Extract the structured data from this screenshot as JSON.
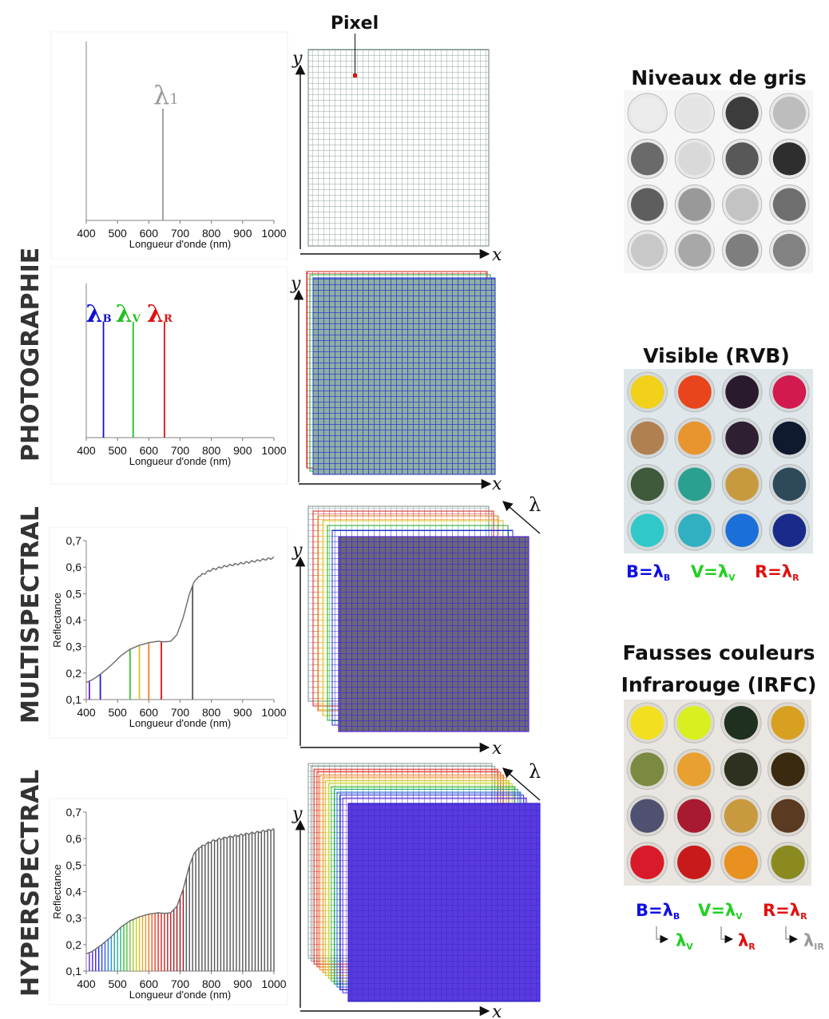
{
  "labels": {
    "photographie": "PHOTOGRAPHIE",
    "multispectral": "MULTISPECTRAL",
    "hyperspectral": "HYPERSPECTRAL",
    "pixel": "Pixel",
    "x": "x",
    "y": "y",
    "lambda": "λ"
  },
  "photos": {
    "gray": {
      "title": "Niveaux de gris"
    },
    "visible": {
      "title": "Visible (RVB)",
      "b": "B=λ",
      "v": "V=λ",
      "r": "R=λ",
      "sub_b": "B",
      "sub_v": "V",
      "sub_r": "R"
    },
    "irfc": {
      "title1": "Fausses couleurs",
      "title2": "Infrarouge (IRFC)",
      "b": "B=λ",
      "v": "V=λ",
      "r": "R=λ",
      "sub_b": "B",
      "sub_v": "V",
      "sub_r": "R",
      "map_v": "λ",
      "map_r": "λ",
      "map_ir": "λ",
      "map_sub_v": "V",
      "map_sub_r": "R",
      "map_sub_ir": "IR"
    },
    "swatch_colors": {
      "gray": [
        [
          "#ececec",
          "#e4e4e4",
          "#3c3c3c",
          "#bdbdbd"
        ],
        [
          "#6a6a6a",
          "#d9d9d9",
          "#585858",
          "#2e2e2e"
        ],
        [
          "#5e5e5e",
          "#999999",
          "#c3c3c3",
          "#6e6e6e"
        ],
        [
          "#c8c8c8",
          "#a8a8a8",
          "#7e7e7e",
          "#828282"
        ]
      ],
      "visible": [
        [
          "#f2d11a",
          "#e8451c",
          "#2a1a2e",
          "#d21a4e"
        ],
        [
          "#b08050",
          "#e89530",
          "#2e2032",
          "#0f1a2e"
        ],
        [
          "#3e5a3a",
          "#2aa090",
          "#c89a40",
          "#2e4a5a"
        ],
        [
          "#30c8c8",
          "#30b0c0",
          "#1a70d8",
          "#1a2a8a"
        ]
      ],
      "irfc": [
        [
          "#f2e020",
          "#d8f020",
          "#203020",
          "#d8a020"
        ],
        [
          "#7a8a40",
          "#e8a030",
          "#2e3020",
          "#3a2a10"
        ],
        [
          "#505070",
          "#a81a30",
          "#c89a40",
          "#5a3a20"
        ],
        [
          "#d81a2a",
          "#c81a1a",
          "#e89020",
          "#8a8a20"
        ]
      ]
    }
  },
  "chart_data": [
    {
      "type": "line",
      "title": "",
      "xlabel": "Longueur d'onde (nm)",
      "ylabel": "",
      "x_ticks": [
        "400",
        "500",
        "600",
        "700",
        "800",
        "900",
        "1000"
      ],
      "xlim": [
        400,
        1000
      ],
      "bands": [
        {
          "label": "λ",
          "subscript": "1",
          "x": 645,
          "color": "#999999"
        }
      ]
    },
    {
      "type": "line",
      "title": "",
      "xlabel": "Longueur d'onde (nm)",
      "ylabel": "",
      "x_ticks": [
        "400",
        "500",
        "600",
        "700",
        "800",
        "900",
        "1000"
      ],
      "xlim": [
        400,
        1000
      ],
      "bands": [
        {
          "label": "λ",
          "subscript": "B",
          "x": 455,
          "color": "#1010d0"
        },
        {
          "label": "λ",
          "subscript": "V",
          "x": 550,
          "color": "#20c020"
        },
        {
          "label": "λ",
          "subscript": "R",
          "x": 650,
          "color": "#e01010"
        }
      ]
    },
    {
      "type": "line",
      "title": "",
      "xlabel": "Longueur d'onde (nm)",
      "ylabel": "Reflectance",
      "x_ticks": [
        "400",
        "500",
        "600",
        "700",
        "800",
        "900",
        "1000"
      ],
      "y_ticks": [
        "0,1",
        "0,2",
        "0,3",
        "0,4",
        "0,5",
        "0,6",
        "0,7"
      ],
      "xlim": [
        400,
        1000
      ],
      "ylim": [
        0.1,
        0.7
      ],
      "series": [
        {
          "x": [
            400,
            420,
            450,
            480,
            510,
            540,
            570,
            600,
            630,
            650,
            670,
            690,
            710,
            730,
            745,
            760,
            800,
            850,
            900,
            950,
            1000
          ],
          "y": [
            0.165,
            0.175,
            0.2,
            0.23,
            0.265,
            0.29,
            0.305,
            0.315,
            0.32,
            0.318,
            0.32,
            0.345,
            0.41,
            0.5,
            0.545,
            0.565,
            0.59,
            0.605,
            0.615,
            0.625,
            0.635
          ]
        }
      ],
      "bands": [
        {
          "x": 410,
          "color": "#7020c0"
        },
        {
          "x": 445,
          "color": "#2020e0"
        },
        {
          "x": 540,
          "color": "#40c030"
        },
        {
          "x": 570,
          "color": "#e0c020"
        },
        {
          "x": 600,
          "color": "#f08020"
        },
        {
          "x": 640,
          "color": "#e01010"
        },
        {
          "x": 740,
          "color": "#555555"
        }
      ]
    },
    {
      "type": "line",
      "title": "",
      "xlabel": "Longueur d'onde (nm)",
      "ylabel": "Reflectance",
      "x_ticks": [
        "400",
        "500",
        "600",
        "700",
        "800",
        "900",
        "1000"
      ],
      "y_ticks": [
        "0,1",
        "0,2",
        "0,3",
        "0,4",
        "0,5",
        "0,6",
        "0,7"
      ],
      "xlim": [
        400,
        1000
      ],
      "ylim": [
        0.1,
        0.7
      ],
      "series": [
        {
          "x": [
            400,
            420,
            450,
            480,
            510,
            540,
            570,
            600,
            630,
            650,
            670,
            690,
            710,
            730,
            745,
            760,
            800,
            850,
            900,
            950,
            1000
          ],
          "y": [
            0.165,
            0.175,
            0.2,
            0.23,
            0.265,
            0.29,
            0.305,
            0.315,
            0.32,
            0.318,
            0.32,
            0.345,
            0.41,
            0.5,
            0.545,
            0.565,
            0.59,
            0.605,
            0.615,
            0.625,
            0.635
          ]
        }
      ],
      "bands_start": 410,
      "bands_end": 1000,
      "bands_step": 10
    }
  ]
}
